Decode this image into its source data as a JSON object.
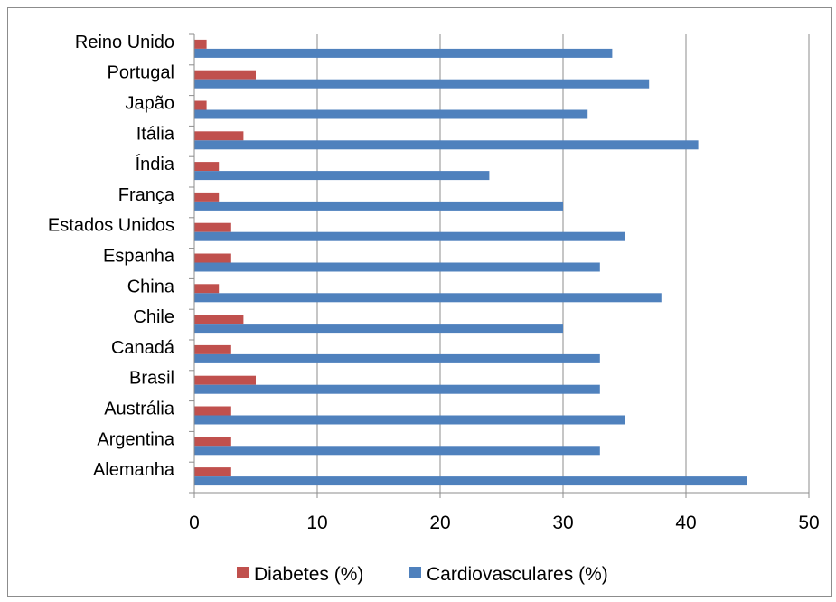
{
  "chart_data": {
    "type": "bar",
    "orientation": "horizontal",
    "categories": [
      "Reino Unido",
      "Portugal",
      "Japão",
      "Itália",
      "Índia",
      "França",
      "Estados Unidos",
      "Espanha",
      "China",
      "Chile",
      "Canadá",
      "Brasil",
      "Austrália",
      "Argentina",
      "Alemanha"
    ],
    "series": [
      {
        "name": "Diabetes (%)",
        "color": "#c0504d",
        "values": [
          1,
          5,
          1,
          4,
          2,
          2,
          3,
          3,
          2,
          4,
          3,
          5,
          3,
          3,
          3
        ]
      },
      {
        "name": "Cardiovasculares (%)",
        "color": "#4f81bd",
        "values": [
          34,
          37,
          32,
          41,
          24,
          30,
          35,
          33,
          38,
          30,
          33,
          33,
          35,
          33,
          45
        ]
      }
    ],
    "x_ticks": [
      "0",
      "10",
      "20",
      "30",
      "40",
      "50"
    ],
    "xlim": [
      0,
      50
    ],
    "grid": true,
    "legend_position": "bottom"
  }
}
